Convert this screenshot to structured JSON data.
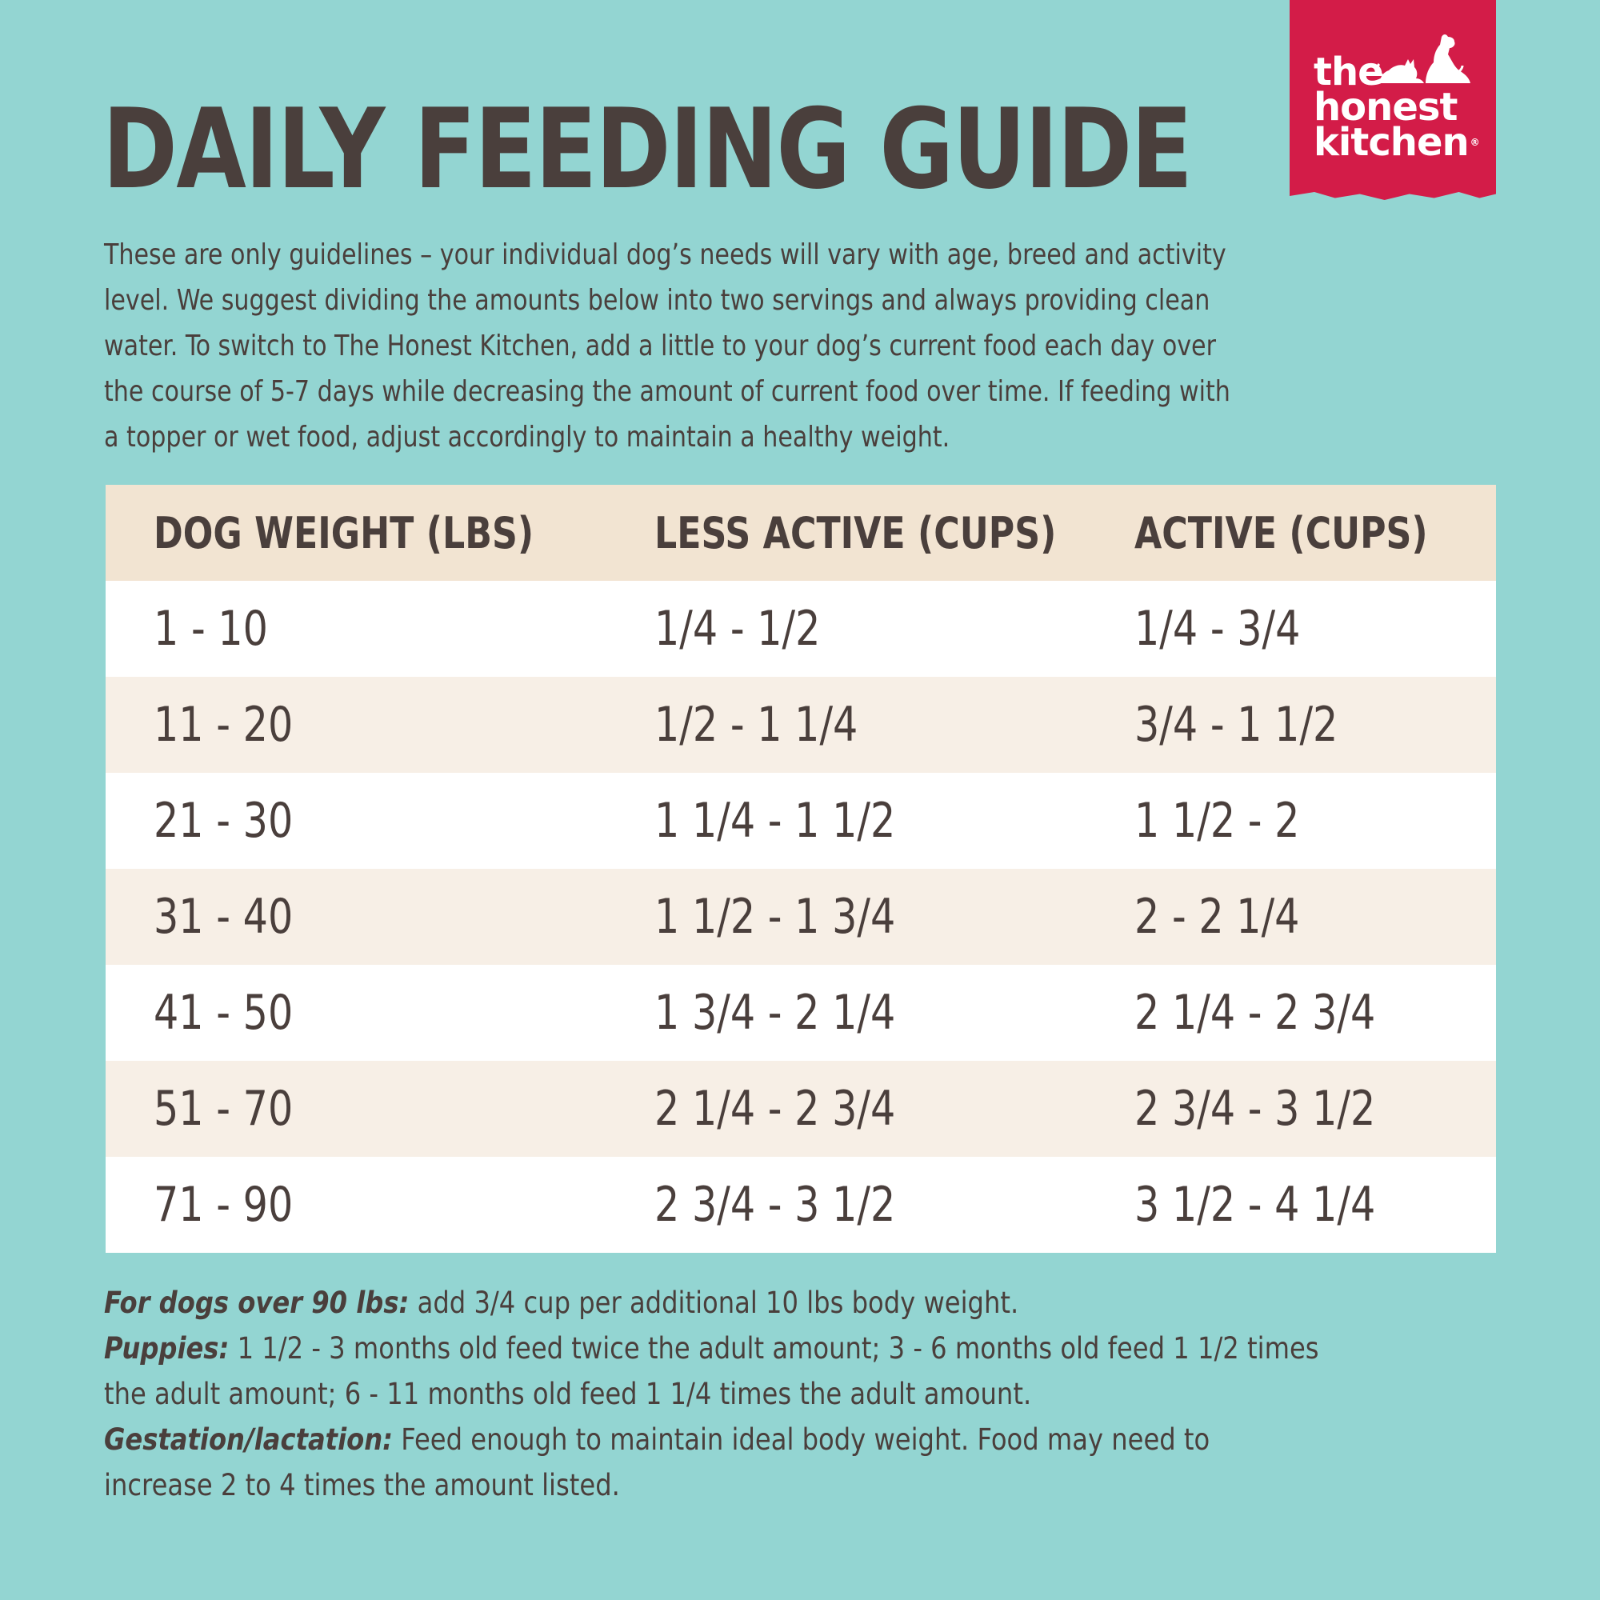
{
  "title": "DAILY FEEDING GUIDE",
  "brand": {
    "line1": "the",
    "line2": "honest",
    "line3": "kitchen",
    "reg": "®",
    "color": "#d31c48"
  },
  "intro_lines": [
    "These are only guidelines – your individual dog’s needs will vary with age, breed and activity",
    "level. We suggest dividing the amounts below into two servings and always providing clean",
    "water. To switch to The Honest Kitchen, add a little to your dog’s current food each day over",
    "the course of 5-7 days while decreasing the amount of current food over time. If feeding with",
    "a topper or wet food, adjust accordingly to maintain a healthy weight."
  ],
  "table": {
    "headers": [
      "DOG WEIGHT (LBS)",
      "LESS ACTIVE (CUPS)",
      "ACTIVE (CUPS)"
    ],
    "rows": [
      [
        "1 - 10",
        "1/4 - 1/2",
        "1/4 - 3/4"
      ],
      [
        "11 - 20",
        "1/2 - 1 1/4",
        "3/4 - 1 1/2"
      ],
      [
        "21 - 30",
        "1 1/4 - 1 1/2",
        "1 1/2 - 2"
      ],
      [
        "31 - 40",
        "1 1/2 - 1 3/4",
        "2 - 2 1/4"
      ],
      [
        "41 - 50",
        "1 3/4 - 2 1/4",
        "2 1/4 - 2 3/4"
      ],
      [
        "51 - 70",
        "2 1/4 - 2 3/4",
        "2 3/4 - 3 1/2"
      ],
      [
        "71 - 90",
        "2 3/4 - 3 1/2",
        "3 1/2 - 4 1/4"
      ]
    ]
  },
  "notes": {
    "over90_label": "For dogs over 90 lbs:",
    "over90_text": " add 3/4 cup per additional 10 lbs body weight.",
    "puppies_label": "Puppies:",
    "puppies_text1": " 1 1/2 - 3 months old feed twice the adult amount; 3 - 6 months old feed 1 1/2 times",
    "puppies_text2": "the adult amount; 6 - 11 months old feed 1 1/4 times the adult amount.",
    "gestation_label": "Gestation/lactation:",
    "gestation_text1": " Feed enough to maintain ideal body weight. Food may need to",
    "gestation_text2": "increase 2 to 4 times the amount listed."
  }
}
